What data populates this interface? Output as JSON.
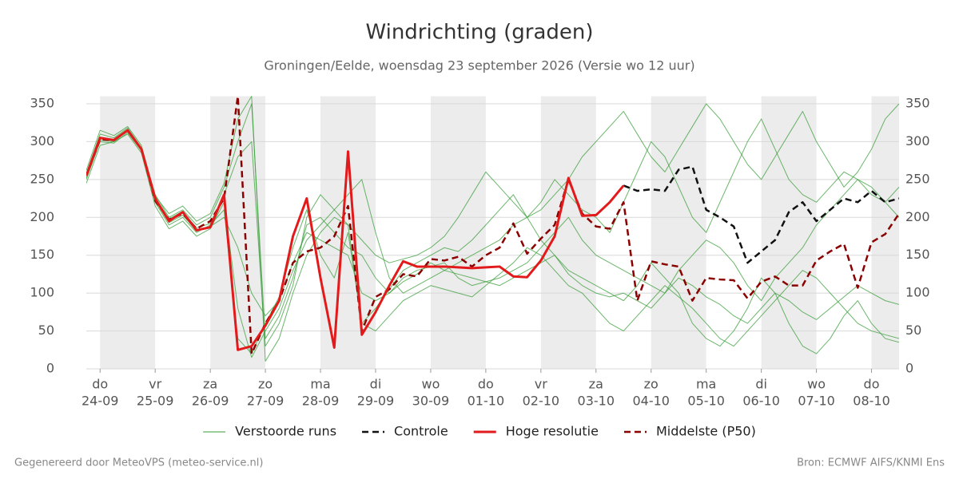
{
  "chart_data": {
    "type": "line",
    "title": "Windrichting (graden)",
    "subtitle": "Groningen/Eelde, woensdag 23 september 2026 (Versie wo 12 uur)",
    "x": [
      -0.25,
      0,
      0.25,
      0.5,
      0.75,
      1,
      1.25,
      1.5,
      1.75,
      2,
      2.25,
      2.5,
      2.75,
      3,
      3.25,
      3.5,
      3.75,
      4,
      4.25,
      4.5,
      4.75,
      5,
      5.25,
      5.5,
      5.75,
      6,
      6.25,
      6.5,
      6.75,
      7,
      7.25,
      7.5,
      7.75,
      8,
      8.25,
      8.5,
      8.75,
      9,
      9.25,
      9.5,
      9.75,
      10,
      10.25,
      10.5,
      10.75,
      11,
      11.25,
      11.5,
      11.75,
      12,
      12.25,
      12.5,
      12.75,
      13,
      13.25,
      13.5,
      13.75,
      14,
      14.25,
      14.5
    ],
    "xlim": [
      -0.25,
      14.5
    ],
    "xticks": [
      {
        "value": 0,
        "label": "do",
        "date": "24-09"
      },
      {
        "value": 1,
        "label": "vr",
        "date": "25-09"
      },
      {
        "value": 2,
        "label": "za",
        "date": "26-09"
      },
      {
        "value": 3,
        "label": "zo",
        "date": "27-09"
      },
      {
        "value": 4,
        "label": "ma",
        "date": "28-09"
      },
      {
        "value": 5,
        "label": "di",
        "date": "29-09"
      },
      {
        "value": 6,
        "label": "wo",
        "date": "30-09"
      },
      {
        "value": 7,
        "label": "do",
        "date": "01-10"
      },
      {
        "value": 8,
        "label": "vr",
        "date": "02-10"
      },
      {
        "value": 9,
        "label": "za",
        "date": "03-10"
      },
      {
        "value": 10,
        "label": "zo",
        "date": "04-10"
      },
      {
        "value": 11,
        "label": "ma",
        "date": "05-10"
      },
      {
        "value": 12,
        "label": "di",
        "date": "06-10"
      },
      {
        "value": 13,
        "label": "wo",
        "date": "07-10"
      },
      {
        "value": 14,
        "label": "do",
        "date": "08-10"
      }
    ],
    "ylim": [
      0,
      360
    ],
    "yticks": [
      0,
      50,
      100,
      150,
      200,
      250,
      300,
      350
    ],
    "grid": true,
    "shading": "alternate-days",
    "ensemble": {
      "name": "Verstoorde runs",
      "color": "#3a9e3a",
      "members": [
        [
          250,
          300,
          298,
          312,
          288,
          220,
          190,
          200,
          180,
          190,
          210,
          40,
          20,
          60,
          95,
          160,
          210,
          150,
          120,
          180,
          60,
          80,
          105,
          130,
          140,
          150,
          160,
          155,
          170,
          190,
          210,
          230,
          200,
          220,
          250,
          230,
          210,
          200,
          180,
          220,
          260,
          300,
          280,
          240,
          200,
          180,
          220,
          260,
          300,
          330,
          290,
          250,
          230,
          220,
          240,
          260,
          250,
          230,
          220,
          240
        ],
        [
          258,
          310,
          305,
          318,
          292,
          230,
          200,
          210,
          190,
          200,
          240,
          300,
          350,
          40,
          70,
          120,
          190,
          200,
          180,
          160,
          150,
          120,
          100,
          115,
          125,
          140,
          130,
          125,
          120,
          115,
          110,
          120,
          130,
          140,
          150,
          125,
          110,
          100,
          95,
          100,
          90,
          80,
          100,
          120,
          110,
          95,
          85,
          70,
          60,
          80,
          100,
          90,
          75,
          65,
          80,
          95,
          110,
          100,
          90,
          85
        ],
        [
          245,
          295,
          300,
          310,
          285,
          215,
          185,
          195,
          175,
          185,
          220,
          80,
          15,
          50,
          80,
          130,
          170,
          190,
          210,
          230,
          250,
          180,
          120,
          100,
          110,
          120,
          130,
          140,
          150,
          160,
          170,
          190,
          200,
          170,
          150,
          130,
          120,
          110,
          100,
          90,
          110,
          140,
          120,
          100,
          60,
          40,
          30,
          50,
          80,
          120,
          100,
          60,
          30,
          20,
          40,
          70,
          90,
          60,
          40,
          35
        ],
        [
          262,
          315,
          308,
          320,
          295,
          228,
          205,
          215,
          195,
          205,
          245,
          330,
          360,
          10,
          40,
          100,
          150,
          180,
          200,
          190,
          170,
          150,
          140,
          145,
          150,
          160,
          175,
          200,
          230,
          260,
          240,
          220,
          200,
          210,
          230,
          250,
          280,
          300,
          320,
          340,
          310,
          280,
          260,
          290,
          320,
          350,
          330,
          300,
          270,
          250,
          280,
          310,
          340,
          300,
          270,
          240,
          260,
          290,
          330,
          350
        ],
        [
          252,
          302,
          300,
          314,
          289,
          222,
          193,
          203,
          182,
          188,
          200,
          160,
          100,
          70,
          90,
          140,
          180,
          170,
          160,
          150,
          100,
          90,
          100,
          120,
          130,
          135,
          140,
          120,
          110,
          115,
          120,
          130,
          140,
          160,
          180,
          200,
          170,
          150,
          140,
          130,
          120,
          110,
          100,
          130,
          150,
          170,
          160,
          140,
          110,
          90,
          120,
          140,
          160,
          190,
          210,
          230,
          250,
          240,
          220,
          200
        ],
        [
          256,
          306,
          303,
          316,
          291,
          226,
          198,
          208,
          186,
          192,
          230,
          280,
          300,
          30,
          60,
          110,
          200,
          230,
          210,
          190,
          60,
          50,
          70,
          90,
          100,
          110,
          105,
          100,
          95,
          110,
          125,
          140,
          160,
          150,
          130,
          110,
          100,
          80,
          60,
          50,
          70,
          90,
          110,
          95,
          80,
          60,
          40,
          30,
          50,
          70,
          90,
          110,
          130,
          120,
          100,
          80,
          60,
          50,
          45,
          40
        ]
      ]
    },
    "series": [
      {
        "name": "Controle",
        "color": "#111111",
        "dash": true,
        "values": [
          null,
          null,
          null,
          null,
          null,
          null,
          null,
          null,
          null,
          null,
          null,
          null,
          null,
          null,
          null,
          null,
          null,
          null,
          null,
          null,
          null,
          null,
          null,
          null,
          null,
          null,
          null,
          null,
          null,
          null,
          null,
          null,
          null,
          null,
          null,
          null,
          null,
          null,
          null,
          242,
          235,
          237,
          235,
          263,
          267,
          210,
          200,
          188,
          140,
          155,
          170,
          207,
          220,
          195,
          210,
          225,
          220,
          235,
          220,
          225
        ]
      },
      {
        "name": "Hoge resolutie",
        "color": "#e31a1c",
        "dash": false,
        "values": [
          255,
          305,
          302,
          315,
          290,
          225,
          195,
          207,
          183,
          187,
          230,
          25,
          30,
          57,
          90,
          175,
          225,
          120,
          28,
          287,
          45,
          75,
          110,
          142,
          135,
          135,
          135,
          134,
          133,
          134,
          135,
          122,
          121,
          143,
          175,
          252,
          202,
          203,
          220,
          242,
          null,
          null,
          null,
          null,
          null,
          null,
          null,
          null,
          null,
          null,
          null,
          null,
          null,
          null,
          null,
          null,
          null,
          null,
          null,
          null
        ]
      },
      {
        "name": "Middelste (P50)",
        "color": "#8b0000",
        "dash": true,
        "values": [
          255,
          303,
          302,
          315,
          290,
          222,
          197,
          205,
          185,
          195,
          225,
          360,
          20,
          60,
          90,
          140,
          155,
          160,
          175,
          215,
          50,
          95,
          105,
          125,
          122,
          145,
          143,
          148,
          135,
          150,
          160,
          192,
          152,
          172,
          190,
          250,
          205,
          188,
          185,
          220,
          90,
          142,
          138,
          135,
          90,
          120,
          118,
          117,
          93,
          115,
          122,
          110,
          110,
          143,
          155,
          165,
          107,
          167,
          178,
          205
        ]
      }
    ]
  },
  "footer": {
    "left": "Gegenereerd door MeteoVPS (meteo-service.nl)",
    "right": "Bron: ECMWF AIFS/KNMI Ens"
  }
}
